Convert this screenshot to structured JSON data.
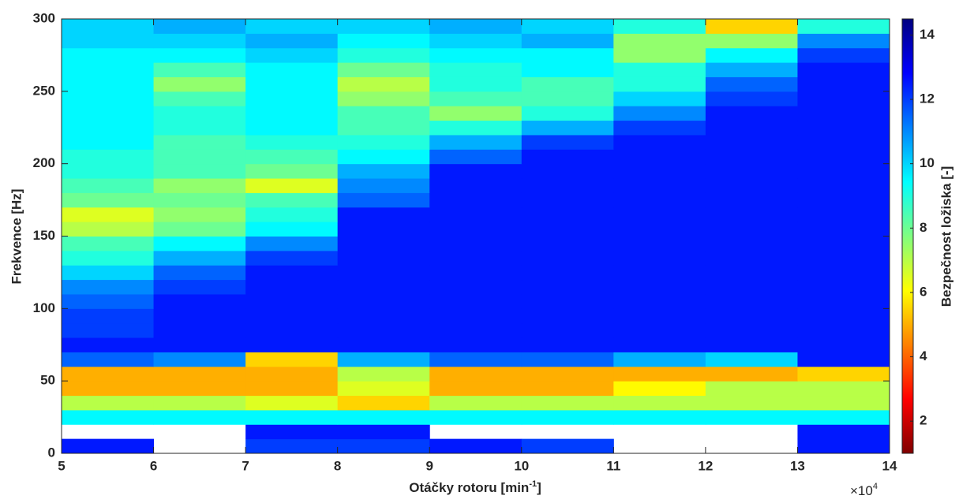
{
  "chart_data": {
    "type": "heatmap",
    "xlabel": [
      "Otáčky rotoru [min",
      "-1",
      "]"
    ],
    "ylabel": "Frekvence [Hz]",
    "x_multiplier": {
      "base": "×10",
      "exponent": "4"
    },
    "colorbar_label": "Bezpečnost ložiska [-]",
    "colormap": "jet",
    "colormap_reversed": true,
    "clim": [
      1,
      14.5
    ],
    "cticks": [
      2,
      4,
      6,
      8,
      10,
      12,
      14
    ],
    "xlim": [
      5,
      14
    ],
    "xticks": [
      5,
      6,
      7,
      8,
      9,
      10,
      11,
      12,
      13,
      14
    ],
    "ylim": [
      0,
      300
    ],
    "yticks": [
      0,
      50,
      100,
      150,
      200,
      250,
      300
    ],
    "x": [
      5.5,
      6.5,
      7.5,
      8.5,
      9.5,
      10.5,
      11.5,
      12.5,
      13.5
    ],
    "y": [
      5,
      15,
      25,
      35,
      45,
      55,
      65,
      75,
      85,
      95,
      105,
      115,
      125,
      135,
      145,
      155,
      165,
      175,
      185,
      195,
      205,
      215,
      225,
      235,
      245,
      255,
      265,
      275,
      285,
      295
    ],
    "z": [
      [
        12.5,
        null,
        12,
        12,
        12.5,
        12,
        null,
        null,
        12.5
      ],
      [
        null,
        null,
        12.5,
        12.5,
        null,
        null,
        null,
        null,
        12.5
      ],
      [
        9.5,
        9.5,
        9.5,
        9.5,
        9.5,
        9.5,
        9.5,
        9.5,
        9.5
      ],
      [
        7,
        7,
        6.5,
        5.5,
        7,
        7,
        7,
        7,
        7
      ],
      [
        5,
        5,
        5,
        6.5,
        5,
        5,
        6,
        7,
        7
      ],
      [
        5,
        5,
        5,
        7,
        5,
        5,
        5,
        5,
        5.5
      ],
      [
        11.5,
        11,
        5.5,
        10.5,
        11.5,
        11.5,
        10.5,
        10,
        12.5
      ],
      [
        12.5,
        12.5,
        12.5,
        12.5,
        12.5,
        12.5,
        12.5,
        12.5,
        12.5
      ],
      [
        12,
        12.5,
        12.5,
        12.5,
        12.5,
        12.5,
        12.5,
        12.5,
        12.5
      ],
      [
        12,
        12.5,
        12.5,
        12.5,
        12.5,
        12.5,
        12.5,
        12.5,
        12.5
      ],
      [
        11.5,
        12.5,
        12.5,
        12.5,
        12.5,
        12.5,
        12.5,
        12.5,
        12.5
      ],
      [
        11,
        12,
        12.5,
        12.5,
        12.5,
        12.5,
        12.5,
        12.5,
        12.5
      ],
      [
        10,
        11.5,
        12.5,
        12.5,
        12.5,
        12.5,
        12.5,
        12.5,
        12.5
      ],
      [
        9,
        10.5,
        12,
        12.5,
        12.5,
        12.5,
        12.5,
        12.5,
        12.5
      ],
      [
        8.5,
        9.5,
        11,
        12.5,
        12.5,
        12.5,
        12.5,
        12.5,
        12.5
      ],
      [
        7,
        8,
        9.5,
        12.5,
        12.5,
        12.5,
        12.5,
        12.5,
        12.5
      ],
      [
        6.5,
        7.5,
        9,
        12.5,
        12.5,
        12.5,
        12.5,
        12.5,
        12.5
      ],
      [
        8,
        8,
        8.5,
        11.5,
        12.5,
        12.5,
        12.5,
        12.5,
        12.5
      ],
      [
        8.5,
        7.5,
        6.5,
        11,
        12.5,
        12.5,
        12.5,
        12.5,
        12.5
      ],
      [
        9,
        8.5,
        8,
        10.5,
        12.5,
        12.5,
        12.5,
        12.5,
        12.5
      ],
      [
        9,
        8.5,
        8.5,
        9.5,
        11.5,
        12.5,
        12.5,
        12.5,
        12.5
      ],
      [
        9.5,
        8.5,
        9,
        9,
        10.5,
        12,
        12.5,
        12.5,
        12.5
      ],
      [
        9.5,
        9,
        9.5,
        8.5,
        9,
        10.5,
        12,
        12.5,
        12.5
      ],
      [
        9.5,
        9,
        9.5,
        8.5,
        7.5,
        9,
        11,
        12.5,
        12.5
      ],
      [
        9.5,
        8.5,
        9.5,
        7.5,
        8.5,
        8.5,
        10,
        12,
        12.5
      ],
      [
        9.5,
        7.5,
        9.5,
        7,
        9,
        8.5,
        9,
        11.5,
        12.5
      ],
      [
        9.5,
        8.5,
        9.5,
        8,
        9,
        9.5,
        9,
        10.5,
        12.5
      ],
      [
        9.5,
        9.5,
        10,
        9,
        9.5,
        9.5,
        7.5,
        9.5,
        12
      ],
      [
        10,
        10,
        10.5,
        9.5,
        10,
        10.5,
        7.5,
        7.5,
        11
      ],
      [
        10,
        10.5,
        10,
        10,
        10.5,
        10,
        9,
        5.5,
        9
      ]
    ]
  }
}
